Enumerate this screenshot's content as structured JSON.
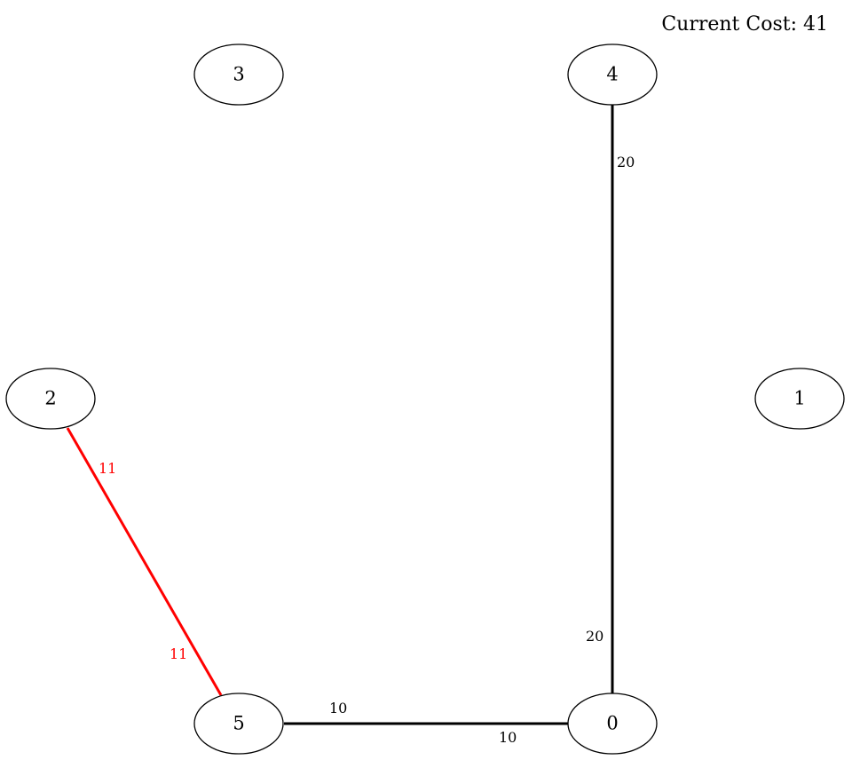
{
  "header": {
    "cost_text": "Current Cost: 41"
  },
  "graph": {
    "nodes": [
      {
        "id": "0",
        "label": "0"
      },
      {
        "id": "1",
        "label": "1"
      },
      {
        "id": "2",
        "label": "2"
      },
      {
        "id": "3",
        "label": "3"
      },
      {
        "id": "4",
        "label": "4"
      },
      {
        "id": "5",
        "label": "5"
      }
    ],
    "edges": [
      {
        "from": "4",
        "to": "0",
        "weight": "20",
        "color": "#000000"
      },
      {
        "from": "5",
        "to": "0",
        "weight": "10",
        "color": "#000000"
      },
      {
        "from": "2",
        "to": "5",
        "weight": "11",
        "color": "#ff0000"
      }
    ]
  }
}
